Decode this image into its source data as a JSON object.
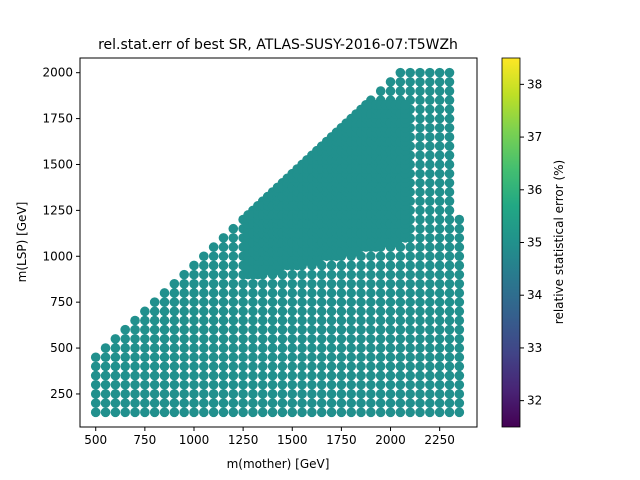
{
  "chart_data": {
    "type": "scatter",
    "title": "rel.stat.err of best SR, ATLAS-SUSY-2016-07:T5WZh",
    "xlabel": "m(mother) [GeV]",
    "ylabel": "m(LSP) [GeV]",
    "xlim": [
      420,
      2440
    ],
    "ylim": [
      70,
      2080
    ],
    "xticks": [
      500,
      750,
      1000,
      1250,
      1500,
      1750,
      2000,
      2250
    ],
    "yticks": [
      250,
      500,
      750,
      1000,
      1250,
      1500,
      1750,
      2000
    ],
    "grid": false,
    "colorbar": {
      "label": "relative statistical error (%)",
      "range": [
        31.5,
        38.5
      ],
      "ticks": [
        32,
        33,
        34,
        35,
        36,
        37,
        38
      ],
      "colormap": "viridis"
    },
    "marker_color": "#21908d",
    "marker_value": 35.0,
    "grid_region": {
      "x_start": 500,
      "x_step": 50,
      "x_end": 2350,
      "y_start": 150,
      "y_step": 50,
      "y_max_rule": "y <= x - 50 for x < 2050; y <= 2000 for 2050 <= x <= 2350; y <= 1200 at x = 2350"
    },
    "dense_region": {
      "description": "additional overlapping points",
      "x_range": [
        1250,
        2100
      ],
      "y_range": [
        850,
        1850
      ]
    }
  }
}
